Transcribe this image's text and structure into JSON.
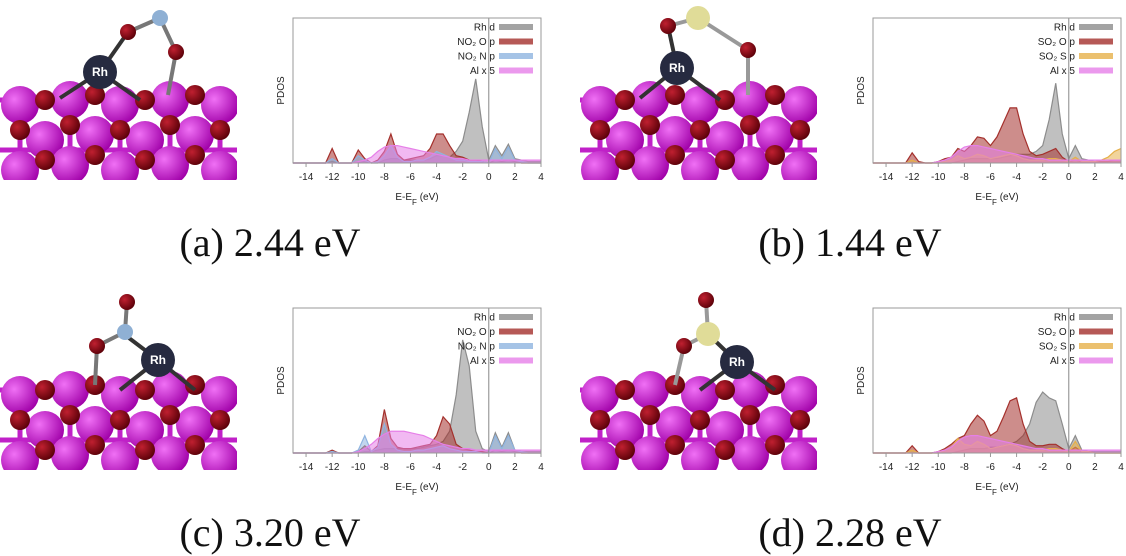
{
  "chart_data": [
    {
      "type": "area",
      "caption": "(a) 2.44 eV",
      "atom_label": "Rh",
      "ylabel": "PDOS",
      "xlabel": [
        "E-E",
        "F",
        " (eV)"
      ],
      "xlim": [
        -15,
        4
      ],
      "xticks": [
        -14,
        -12,
        -10,
        -8,
        -6,
        -4,
        -2,
        0,
        2,
        4
      ],
      "ylim": [
        0,
        1
      ],
      "legend": "upper right",
      "x": [
        -15,
        -14.5,
        -14,
        -13.5,
        -13,
        -12.5,
        -12,
        -11.5,
        -11,
        -10.5,
        -10,
        -9.5,
        -9,
        -8.5,
        -8,
        -7.5,
        -7,
        -6.5,
        -6,
        -5.5,
        -5,
        -4.5,
        -4,
        -3.5,
        -3,
        -2.5,
        -2,
        -1.5,
        -1,
        -0.5,
        0,
        0.5,
        1,
        1.5,
        2,
        2.5,
        3,
        3.5,
        4
      ],
      "series": [
        {
          "name": "Rh d",
          "color": "#8c8c8c",
          "values": [
            0,
            0,
            0,
            0,
            0,
            0,
            0.01,
            0,
            0,
            0,
            0.01,
            0.01,
            0,
            0,
            0.02,
            0.03,
            0.03,
            0.02,
            0.02,
            0.02,
            0.02,
            0.03,
            0.05,
            0.05,
            0.04,
            0.08,
            0.15,
            0.35,
            0.58,
            0.25,
            0.02,
            0.12,
            0.05,
            0.13,
            0.03,
            0.02,
            0.01,
            0.01,
            0.01
          ]
        },
        {
          "name": "NO₂ O p",
          "color": "#a4302c",
          "values": [
            0,
            0,
            0,
            0,
            0,
            0,
            0.1,
            0,
            0,
            0,
            0.09,
            0.03,
            0,
            0.02,
            0.08,
            0.2,
            0.06,
            0.02,
            0.03,
            0.04,
            0.05,
            0.1,
            0.2,
            0.2,
            0.12,
            0.05,
            0.04,
            0.02,
            0.02,
            0.01,
            0,
            0.02,
            0.01,
            0.02,
            0.01,
            0,
            0,
            0,
            0
          ]
        },
        {
          "name": "NO₂ N p",
          "color": "#8fb4e0",
          "values": [
            0,
            0,
            0,
            0,
            0,
            0,
            0.03,
            0,
            0,
            0,
            0.05,
            0.02,
            0,
            0.01,
            0.05,
            0.12,
            0.04,
            0.01,
            0.01,
            0.02,
            0.02,
            0.04,
            0.08,
            0.06,
            0.04,
            0.02,
            0.02,
            0.01,
            0.01,
            0.01,
            0,
            0.1,
            0.03,
            0.11,
            0.02,
            0.01,
            0,
            0,
            0
          ]
        },
        {
          "name": "Al x 5",
          "color": "#e67fe8",
          "values": [
            0,
            0,
            0,
            0,
            0,
            0,
            0,
            0,
            0,
            0,
            0.01,
            0.02,
            0.04,
            0.08,
            0.11,
            0.12,
            0.12,
            0.11,
            0.1,
            0.09,
            0.08,
            0.07,
            0.06,
            0.05,
            0.04,
            0.03,
            0.03,
            0.02,
            0.02,
            0.02,
            0.02,
            0.02,
            0.02,
            0.02,
            0.02,
            0.02,
            0.02,
            0.02,
            0.02
          ]
        }
      ]
    },
    {
      "type": "area",
      "caption": "(b) 1.44 eV",
      "atom_label": "Rh",
      "ylabel": "PDOS",
      "xlabel": [
        "E-E",
        "F",
        " (eV)"
      ],
      "xlim": [
        -15,
        4
      ],
      "xticks": [
        -14,
        -12,
        -10,
        -8,
        -6,
        -4,
        -2,
        0,
        2,
        4
      ],
      "ylim": [
        0,
        1
      ],
      "legend": "upper right",
      "x": [
        -15,
        -14.5,
        -14,
        -13.5,
        -13,
        -12.5,
        -12,
        -11.5,
        -11,
        -10.5,
        -10,
        -9.5,
        -9,
        -8.5,
        -8,
        -7.5,
        -7,
        -6.5,
        -6,
        -5.5,
        -5,
        -4.5,
        -4,
        -3.5,
        -3,
        -2.5,
        -2,
        -1.5,
        -1,
        -0.5,
        0,
        0.5,
        1,
        1.5,
        2,
        2.5,
        3,
        3.5,
        4
      ],
      "series": [
        {
          "name": "Rh d",
          "color": "#8c8c8c",
          "values": [
            0,
            0,
            0,
            0,
            0,
            0,
            0,
            0,
            0,
            0,
            0,
            0,
            0,
            0.01,
            0.02,
            0.03,
            0.03,
            0.03,
            0.03,
            0.03,
            0.04,
            0.05,
            0.06,
            0.06,
            0.06,
            0.08,
            0.12,
            0.3,
            0.55,
            0.2,
            0.03,
            0.12,
            0.03,
            0.02,
            0.01,
            0.01,
            0.01,
            0.01,
            0.01
          ]
        },
        {
          "name": "SO₂ O p",
          "color": "#a4302c",
          "values": [
            0,
            0,
            0,
            0,
            0,
            0,
            0.07,
            0.01,
            0,
            0,
            0.01,
            0.03,
            0.04,
            0.1,
            0.08,
            0.12,
            0.18,
            0.17,
            0.12,
            0.18,
            0.28,
            0.38,
            0.38,
            0.2,
            0.08,
            0.05,
            0.06,
            0.08,
            0.1,
            0.04,
            0.01,
            0.02,
            0.01,
            0.01,
            0.01,
            0.01,
            0.01,
            0.02,
            0.02
          ]
        },
        {
          "name": "SO₂ S p",
          "color": "#e6b04a",
          "values": [
            0,
            0,
            0,
            0,
            0,
            0,
            0.02,
            0,
            0,
            0,
            0,
            0.01,
            0.02,
            0.05,
            0.03,
            0.04,
            0.06,
            0.05,
            0.03,
            0.04,
            0.05,
            0.06,
            0.05,
            0.03,
            0.02,
            0.02,
            0.02,
            0.03,
            0.03,
            0.02,
            0.01,
            0.04,
            0.01,
            0.01,
            0.01,
            0.02,
            0.04,
            0.08,
            0.1
          ]
        },
        {
          "name": "Al x 5",
          "color": "#e67fe8",
          "values": [
            0,
            0,
            0,
            0,
            0,
            0,
            0,
            0,
            0,
            0,
            0.01,
            0.02,
            0.04,
            0.08,
            0.11,
            0.12,
            0.12,
            0.11,
            0.1,
            0.09,
            0.08,
            0.07,
            0.06,
            0.05,
            0.04,
            0.03,
            0.03,
            0.02,
            0.02,
            0.02,
            0.02,
            0.02,
            0.02,
            0.02,
            0.02,
            0.02,
            0.02,
            0.02,
            0.02
          ]
        }
      ]
    },
    {
      "type": "area",
      "caption": "(c) 3.20 eV",
      "atom_label": "Rh",
      "ylabel": "PDOS",
      "xlabel": [
        "E-E",
        "F",
        " (eV)"
      ],
      "xlim": [
        -15,
        4
      ],
      "xticks": [
        -14,
        -12,
        -10,
        -8,
        -6,
        -4,
        -2,
        0,
        2,
        4
      ],
      "ylim": [
        0,
        1
      ],
      "legend": "upper right",
      "x": [
        -15,
        -14.5,
        -14,
        -13.5,
        -13,
        -12.5,
        -12,
        -11.5,
        -11,
        -10.5,
        -10,
        -9.5,
        -9,
        -8.5,
        -8,
        -7.5,
        -7,
        -6.5,
        -6,
        -5.5,
        -5,
        -4.5,
        -4,
        -3.5,
        -3,
        -2.5,
        -2,
        -1.5,
        -1,
        -0.5,
        0,
        0.5,
        1,
        1.5,
        2,
        2.5,
        3,
        3.5,
        4
      ],
      "series": [
        {
          "name": "Rh d",
          "color": "#8c8c8c",
          "values": [
            0,
            0,
            0,
            0,
            0,
            0,
            0,
            0,
            0,
            0,
            0,
            0.01,
            0.01,
            0.02,
            0.03,
            0.03,
            0.03,
            0.03,
            0.03,
            0.03,
            0.04,
            0.05,
            0.06,
            0.08,
            0.15,
            0.4,
            0.78,
            0.6,
            0.15,
            0.03,
            0.01,
            0.14,
            0.04,
            0.14,
            0.02,
            0.01,
            0.01,
            0.01,
            0.01
          ]
        },
        {
          "name": "NO₂ O p",
          "color": "#a4302c",
          "values": [
            0,
            0,
            0,
            0,
            0,
            0,
            0.02,
            0,
            0,
            0,
            0.01,
            0.05,
            0.01,
            0.05,
            0.3,
            0.1,
            0.04,
            0.03,
            0.03,
            0.04,
            0.05,
            0.06,
            0.12,
            0.25,
            0.2,
            0.06,
            0.03,
            0.02,
            0.01,
            0.01,
            0,
            0.02,
            0.01,
            0.02,
            0.01,
            0,
            0,
            0,
            0
          ]
        },
        {
          "name": "NO₂ N p",
          "color": "#8fb4e0",
          "values": [
            0,
            0,
            0,
            0,
            0,
            0,
            0.01,
            0,
            0,
            0,
            0.02,
            0.12,
            0.01,
            0.04,
            0.2,
            0.06,
            0.02,
            0.01,
            0.01,
            0.02,
            0.02,
            0.03,
            0.04,
            0.05,
            0.03,
            0.02,
            0.01,
            0.01,
            0.01,
            0,
            0,
            0.12,
            0.03,
            0.12,
            0.02,
            0.01,
            0,
            0,
            0
          ]
        },
        {
          "name": "Al x 5",
          "color": "#e67fe8",
          "values": [
            0,
            0,
            0,
            0,
            0,
            0,
            0,
            0,
            0,
            0,
            0.01,
            0.03,
            0.06,
            0.1,
            0.13,
            0.15,
            0.15,
            0.15,
            0.14,
            0.13,
            0.12,
            0.1,
            0.08,
            0.06,
            0.05,
            0.04,
            0.03,
            0.03,
            0.02,
            0.02,
            0.02,
            0.02,
            0.02,
            0.02,
            0.02,
            0.02,
            0.02,
            0.02,
            0.02
          ]
        }
      ]
    },
    {
      "type": "area",
      "caption": "(d) 2.28 eV",
      "atom_label": "Rh",
      "ylabel": "PDOS",
      "xlabel": [
        "E-E",
        "F",
        " (eV)"
      ],
      "xlim": [
        -15,
        4
      ],
      "xticks": [
        -14,
        -12,
        -10,
        -8,
        -6,
        -4,
        -2,
        0,
        2,
        4
      ],
      "ylim": [
        0,
        1
      ],
      "legend": "upper right",
      "x": [
        -15,
        -14.5,
        -14,
        -13.5,
        -13,
        -12.5,
        -12,
        -11.5,
        -11,
        -10.5,
        -10,
        -9.5,
        -9,
        -8.5,
        -8,
        -7.5,
        -7,
        -6.5,
        -6,
        -5.5,
        -5,
        -4.5,
        -4,
        -3.5,
        -3,
        -2.5,
        -2,
        -1.5,
        -1,
        -0.5,
        0,
        0.5,
        1,
        1.5,
        2,
        2.5,
        3,
        3.5,
        4
      ],
      "series": [
        {
          "name": "Rh d",
          "color": "#8c8c8c",
          "values": [
            0,
            0,
            0,
            0,
            0,
            0,
            0,
            0,
            0,
            0,
            0,
            0,
            0,
            0.01,
            0.02,
            0.03,
            0.03,
            0.03,
            0.04,
            0.04,
            0.05,
            0.06,
            0.08,
            0.12,
            0.2,
            0.35,
            0.42,
            0.38,
            0.36,
            0.2,
            0.03,
            0.12,
            0.02,
            0.01,
            0.01,
            0.01,
            0.01,
            0.01,
            0.01
          ]
        },
        {
          "name": "SO₂ O p",
          "color": "#a4302c",
          "values": [
            0,
            0,
            0,
            0,
            0,
            0,
            0.05,
            0,
            0,
            0,
            0.01,
            0.03,
            0.06,
            0.1,
            0.12,
            0.2,
            0.26,
            0.22,
            0.12,
            0.15,
            0.25,
            0.36,
            0.38,
            0.2,
            0.08,
            0.05,
            0.05,
            0.06,
            0.06,
            0.03,
            0.01,
            0.04,
            0.01,
            0.01,
            0,
            0,
            0,
            0,
            0
          ]
        },
        {
          "name": "SO₂ S p",
          "color": "#e6b04a",
          "values": [
            0,
            0,
            0,
            0,
            0,
            0,
            0.02,
            0,
            0,
            0,
            0,
            0.02,
            0.04,
            0.1,
            0.06,
            0.05,
            0.08,
            0.06,
            0.03,
            0.04,
            0.05,
            0.06,
            0.05,
            0.03,
            0.02,
            0.02,
            0.02,
            0.03,
            0.03,
            0.02,
            0.01,
            0.08,
            0.01,
            0.01,
            0,
            0,
            0,
            0,
            0
          ]
        },
        {
          "name": "Al x 5",
          "color": "#e67fe8",
          "values": [
            0,
            0,
            0,
            0,
            0,
            0,
            0,
            0,
            0,
            0,
            0.01,
            0.02,
            0.04,
            0.08,
            0.11,
            0.12,
            0.12,
            0.11,
            0.1,
            0.09,
            0.08,
            0.07,
            0.06,
            0.05,
            0.04,
            0.03,
            0.03,
            0.02,
            0.02,
            0.02,
            0.02,
            0.02,
            0.02,
            0.02,
            0.02,
            0.02,
            0.02,
            0.02,
            0.02
          ]
        }
      ]
    }
  ]
}
